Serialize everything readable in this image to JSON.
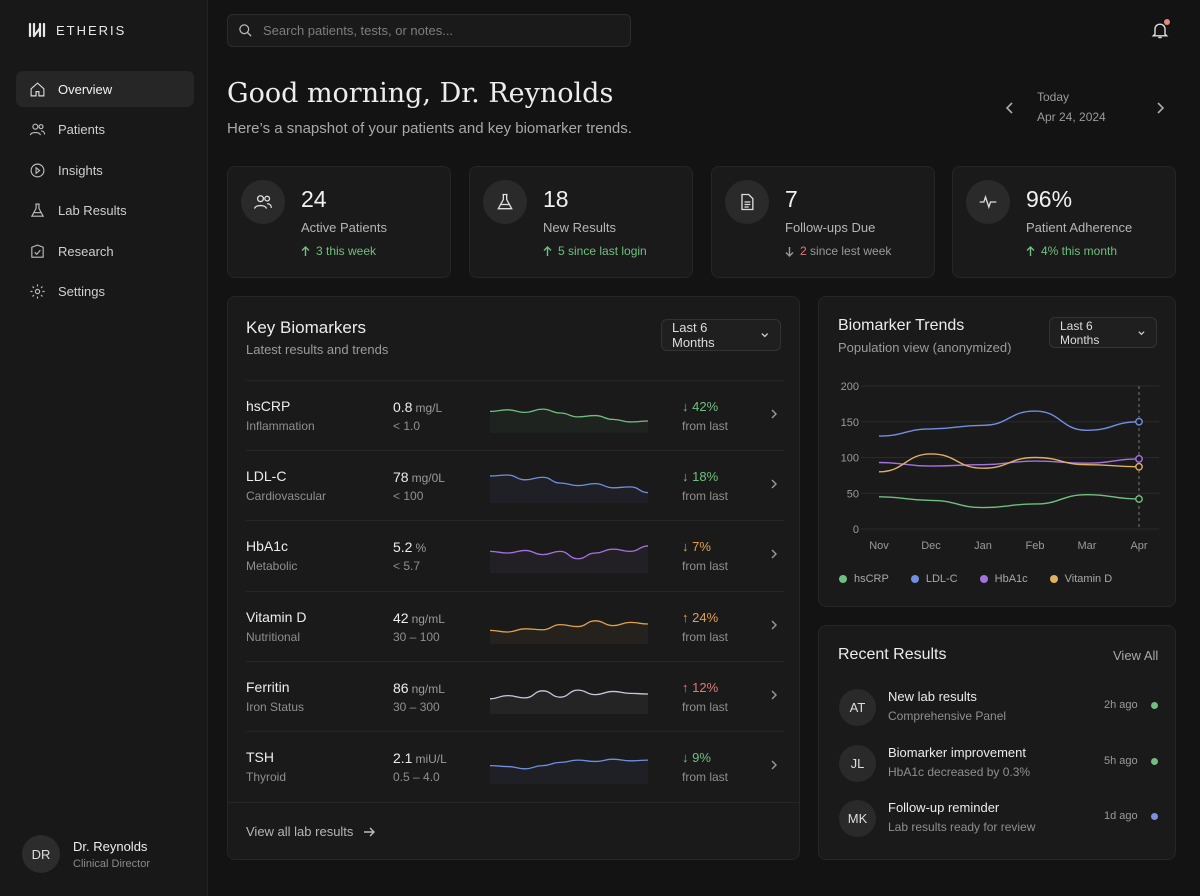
{
  "app": {
    "name": "ETHERIS"
  },
  "sidebar": {
    "items": [
      {
        "label": "Overview",
        "icon": "home-icon",
        "active": true
      },
      {
        "label": "Patients",
        "icon": "users-icon"
      },
      {
        "label": "Insights",
        "icon": "insights-icon"
      },
      {
        "label": "Lab Results",
        "icon": "flask-icon"
      },
      {
        "label": "Research",
        "icon": "research-icon"
      },
      {
        "label": "Settings",
        "icon": "gear-icon"
      }
    ],
    "profile": {
      "initials": "DR",
      "name": "Dr. Reynolds",
      "role": "Clinical Director"
    }
  },
  "search": {
    "placeholder": "Search patients, tests, or notes..."
  },
  "header": {
    "greeting": "Good morning, Dr. Reynolds",
    "subtitle": "Here’s a snapshot of your patients and key biomarker trends.",
    "date_label": "Today",
    "date_value": "Apr 24, 2024"
  },
  "stats": [
    {
      "value": "24",
      "label": "Active Patients",
      "delta": "3 this week",
      "direction": "up",
      "icon": "users-icon",
      "color": "#6fbf7f"
    },
    {
      "value": "18",
      "label": "New Results",
      "delta": "5 since last login",
      "direction": "up",
      "icon": "flask-icon",
      "color": "#6fbf7f"
    },
    {
      "value": "7",
      "label": "Follow-ups Due",
      "delta_num": "2",
      "delta": "since lest week",
      "direction": "down",
      "icon": "document-icon",
      "color": "#e07a74"
    },
    {
      "value": "96%",
      "label": "Patient Adherence",
      "delta": "4% this month",
      "direction": "up",
      "icon": "pulse-icon",
      "color": "#6fbf7f"
    }
  ],
  "biomarkers": {
    "title": "Key Biomarkers",
    "subtitle": "Latest results and trends",
    "range": "Last 6 Months",
    "footer_link": "View all lab results",
    "rows": [
      {
        "name": "hsCRP",
        "category": "Inflammation",
        "value": "0.8",
        "unit": "mg/L",
        "range": "< 1.0",
        "delta": "42%",
        "direction": "down",
        "delta_color": "#6fbf7f",
        "from": "from last",
        "spark_color": "#6fbf7f",
        "spark": [
          0.55,
          0.6,
          0.52,
          0.62,
          0.5,
          0.38,
          0.42,
          0.3,
          0.22,
          0.25
        ]
      },
      {
        "name": "LDL-C",
        "category": "Cardiovascular",
        "value": "78",
        "unit": "mg/0L",
        "range": "< 100",
        "delta": "18%",
        "direction": "down",
        "delta_color": "#6fbf7f",
        "from": "from last",
        "spark_color": "#6f8fe0",
        "spark": [
          0.72,
          0.75,
          0.6,
          0.68,
          0.5,
          0.42,
          0.48,
          0.35,
          0.38,
          0.2
        ]
      },
      {
        "name": "HbA1c",
        "category": "Metabolic",
        "value": "5.2",
        "unit": "%",
        "range": "< 5.7",
        "delta": "7%",
        "direction": "down",
        "delta_color": "#e0a04c",
        "from": "from last",
        "spark_color": "#a472e0",
        "spark": [
          0.55,
          0.5,
          0.58,
          0.45,
          0.55,
          0.32,
          0.5,
          0.62,
          0.55,
          0.72
        ]
      },
      {
        "name": "Vitamin D",
        "category": "Nutritional",
        "value": "42",
        "unit": "ng/mL",
        "range": "30 – 100",
        "delta": "24%",
        "direction": "up",
        "delta_color": "#e0a04c",
        "from": "from last",
        "spark_color": "#e0a04c",
        "spark": [
          0.3,
          0.25,
          0.35,
          0.32,
          0.48,
          0.42,
          0.6,
          0.45,
          0.55,
          0.5
        ]
      },
      {
        "name": "Ferritin",
        "category": "Iron Status",
        "value": "86",
        "unit": "ng/mL",
        "range": "30 – 300",
        "delta": "12%",
        "direction": "up",
        "delta_color": "#e07a74",
        "from": "from last",
        "spark_color": "#c8c8e0",
        "spark": [
          0.35,
          0.45,
          0.38,
          0.6,
          0.4,
          0.62,
          0.48,
          0.58,
          0.52,
          0.5
        ]
      },
      {
        "name": "TSH",
        "category": "Thyroid",
        "value": "2.1",
        "unit": "miU/L",
        "range": "0.5 – 4.0",
        "delta": "9%",
        "direction": "down",
        "delta_color": "#6fbf7f",
        "from": "from last",
        "spark_color": "#6f8fe0",
        "spark": [
          0.45,
          0.42,
          0.35,
          0.45,
          0.55,
          0.62,
          0.58,
          0.65,
          0.6,
          0.62
        ]
      }
    ]
  },
  "trends": {
    "title": "Biomarker Trends",
    "subtitle": "Population view (anonymized)",
    "range": "Last 6 Months"
  },
  "chart_data": {
    "type": "line",
    "x": [
      "Nov",
      "Dec",
      "Jan",
      "Feb",
      "Mar",
      "Apr"
    ],
    "ylim": [
      0,
      200
    ],
    "yticks": [
      0,
      50,
      100,
      150,
      200
    ],
    "grid": true,
    "legend_position": "bottom",
    "series": [
      {
        "name": "hsCRP",
        "color": "#6fbf7f",
        "values": [
          45,
          40,
          30,
          35,
          48,
          42
        ]
      },
      {
        "name": "LDL-C",
        "color": "#6f8fe0",
        "values": [
          130,
          140,
          145,
          165,
          138,
          150
        ]
      },
      {
        "name": "HbA1c",
        "color": "#a472e0",
        "values": [
          93,
          88,
          90,
          95,
          92,
          98
        ]
      },
      {
        "name": "Vitamin D",
        "color": "#e0b060",
        "values": [
          80,
          105,
          85,
          100,
          90,
          87
        ]
      }
    ]
  },
  "recent_results": {
    "title": "Recent Results",
    "view_all": "View All",
    "items": [
      {
        "initials": "AT",
        "title": "New lab results",
        "subtitle": "Comprehensive Panel",
        "time": "2h ago",
        "dot_color": "#6fbf7f"
      },
      {
        "initials": "JL",
        "title": "Biomarker improvement",
        "subtitle": "HbA1c decreased by 0.3%",
        "time": "5h ago",
        "dot_color": "#6fbf7f"
      },
      {
        "initials": "MK",
        "title": "Follow-up reminder",
        "subtitle": "Lab results ready for review",
        "time": "1d ago",
        "dot_color": "#7f8fe0"
      }
    ]
  }
}
